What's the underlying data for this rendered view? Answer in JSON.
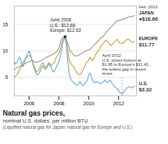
{
  "chart_data": {
    "type": "line",
    "title": "Natural gas prices,",
    "subtitle": "nominal U.S. dollars, per million BTU",
    "caption": "(Liquified natural gas for Japan, natural gas for Europe and U.S.)",
    "xlim": [
      2005.0,
      2013.2
    ],
    "ylim": [
      1.5,
      18.5
    ],
    "xticks": [
      2006,
      2008,
      2010,
      2012
    ],
    "yticks": [
      5,
      10,
      15
    ],
    "grid": true,
    "series": [
      {
        "name": "EUROPE",
        "color": "#c8a44a",
        "x": [
          2005.0,
          2005.08,
          2005.17,
          2005.25,
          2005.33,
          2005.42,
          2005.5,
          2005.58,
          2005.67,
          2005.75,
          2005.83,
          2005.92,
          2006.0,
          2006.08,
          2006.17,
          2006.25,
          2006.33,
          2006.42,
          2006.5,
          2006.58,
          2006.67,
          2006.75,
          2006.83,
          2006.92,
          2007.0,
          2007.08,
          2007.17,
          2007.25,
          2007.33,
          2007.42,
          2007.5,
          2007.58,
          2007.67,
          2007.75,
          2007.83,
          2007.92,
          2008.0,
          2008.08,
          2008.17,
          2008.25,
          2008.33,
          2008.42,
          2008.5,
          2008.58,
          2008.67,
          2008.75,
          2008.83,
          2008.92,
          2009.0,
          2009.08,
          2009.17,
          2009.25,
          2009.33,
          2009.42,
          2009.5,
          2009.58,
          2009.67,
          2009.75,
          2009.83,
          2009.92,
          2010.0,
          2010.08,
          2010.17,
          2010.25,
          2010.33,
          2010.42,
          2010.5,
          2010.58,
          2010.67,
          2010.75,
          2010.83,
          2010.92,
          2011.0,
          2011.08,
          2011.17,
          2011.25,
          2011.33,
          2011.42,
          2011.5,
          2011.58,
          2011.67,
          2011.75,
          2011.83,
          2011.92,
          2012.0,
          2012.08,
          2012.17,
          2012.25,
          2012.33,
          2012.42,
          2012.5,
          2012.58,
          2012.67,
          2012.75,
          2012.83,
          2012.92,
          2013.0,
          2013.08
        ],
        "values": [
          5.0,
          5.2,
          5.5,
          5.8,
          6.2,
          6.8,
          7.2,
          7.8,
          8.2,
          8.5,
          8.8,
          9.0,
          9.2,
          9.0,
          8.5,
          7.8,
          7.2,
          6.5,
          6.0,
          6.2,
          6.5,
          7.0,
          7.5,
          7.8,
          7.2,
          6.8,
          7.0,
          7.5,
          7.8,
          7.5,
          7.2,
          7.5,
          7.8,
          8.2,
          8.8,
          9.2,
          9.5,
          10.2,
          11.0,
          12.0,
          12.4,
          12.63,
          12.0,
          10.5,
          8.5,
          7.8,
          7.5,
          7.2,
          7.0,
          6.5,
          6.0,
          5.8,
          5.5,
          5.5,
          5.8,
          6.2,
          6.8,
          7.2,
          7.8,
          8.0,
          8.2,
          8.8,
          8.5,
          8.2,
          8.5,
          9.0,
          9.5,
          9.8,
          10.0,
          10.5,
          11.0,
          11.2,
          11.5,
          11.8,
          12.0,
          11.8,
          11.5,
          11.2,
          11.0,
          11.2,
          11.5,
          11.8,
          12.0,
          12.2,
          11.8,
          11.5,
          11.42,
          11.42,
          11.5,
          11.8,
          12.0,
          12.2,
          12.2,
          12.0,
          11.8,
          11.6,
          11.7,
          11.77
        ]
      },
      {
        "name": "U.S.",
        "color": "#6aaecc",
        "x": [
          2005.0,
          2005.08,
          2005.17,
          2005.25,
          2005.33,
          2005.42,
          2005.5,
          2005.58,
          2005.67,
          2005.75,
          2005.83,
          2005.92,
          2006.0,
          2006.08,
          2006.17,
          2006.25,
          2006.33,
          2006.42,
          2006.5,
          2006.58,
          2006.67,
          2006.75,
          2006.83,
          2006.92,
          2007.0,
          2007.08,
          2007.17,
          2007.25,
          2007.33,
          2007.42,
          2007.5,
          2007.58,
          2007.67,
          2007.75,
          2007.83,
          2007.92,
          2008.0,
          2008.08,
          2008.17,
          2008.25,
          2008.33,
          2008.42,
          2008.5,
          2008.58,
          2008.67,
          2008.75,
          2008.83,
          2008.92,
          2009.0,
          2009.08,
          2009.17,
          2009.25,
          2009.33,
          2009.42,
          2009.5,
          2009.58,
          2009.67,
          2009.75,
          2009.83,
          2009.92,
          2010.0,
          2010.08,
          2010.17,
          2010.25,
          2010.33,
          2010.42,
          2010.5,
          2010.58,
          2010.67,
          2010.75,
          2010.83,
          2010.92,
          2011.0,
          2011.08,
          2011.17,
          2011.25,
          2011.33,
          2011.42,
          2011.5,
          2011.58,
          2011.67,
          2011.75,
          2011.83,
          2011.92,
          2012.0,
          2012.08,
          2012.17,
          2012.25,
          2012.33,
          2012.42,
          2012.5,
          2012.58,
          2012.67,
          2012.75,
          2012.83,
          2012.92,
          2013.0,
          2013.08
        ],
        "values": [
          8.0,
          7.5,
          7.8,
          8.2,
          8.8,
          8.5,
          7.5,
          7.0,
          7.8,
          8.5,
          9.2,
          9.5,
          10.0,
          9.5,
          8.5,
          7.5,
          6.8,
          6.0,
          5.5,
          5.5,
          5.8,
          6.2,
          6.8,
          7.2,
          6.8,
          6.5,
          6.8,
          7.2,
          7.5,
          7.2,
          6.8,
          6.2,
          6.0,
          6.5,
          7.0,
          7.5,
          8.0,
          8.8,
          10.0,
          11.5,
          12.0,
          12.68,
          11.0,
          8.5,
          6.0,
          5.0,
          4.5,
          4.2,
          4.0,
          3.8,
          3.5,
          3.5,
          3.8,
          4.2,
          3.8,
          3.5,
          3.5,
          3.8,
          4.2,
          4.5,
          5.5,
          5.8,
          5.2,
          4.5,
          4.2,
          4.0,
          4.0,
          4.2,
          4.0,
          3.8,
          3.8,
          4.0,
          4.2,
          4.5,
          4.2,
          4.0,
          4.2,
          4.5,
          4.2,
          3.8,
          3.5,
          3.2,
          3.0,
          2.8,
          2.5,
          2.2,
          2.0,
          1.95,
          2.2,
          2.5,
          2.8,
          3.0,
          3.2,
          3.2,
          3.1,
          3.0,
          3.2,
          3.32
        ]
      },
      {
        "name": "JAPAN",
        "color": "#999999",
        "x": [
          2005.0,
          2005.17,
          2005.33,
          2005.5,
          2005.67,
          2005.83,
          2006.0,
          2006.17,
          2006.33,
          2006.5,
          2006.67,
          2006.83,
          2007.0,
          2007.17,
          2007.33,
          2007.5,
          2007.67,
          2007.83,
          2008.0,
          2008.17,
          2008.33,
          2008.42,
          2008.58,
          2008.75,
          2008.92,
          2009.0,
          2009.17,
          2009.33,
          2009.5,
          2009.67,
          2009.83,
          2010.0,
          2010.17,
          2010.33,
          2010.5,
          2010.67,
          2010.83,
          2011.0,
          2011.17,
          2011.33,
          2011.5,
          2011.67,
          2011.83,
          2012.0,
          2012.17,
          2012.33,
          2012.5,
          2012.67,
          2012.83,
          2013.0,
          2013.08
        ],
        "values": [
          6.5,
          6.8,
          7.0,
          7.2,
          7.5,
          7.8,
          8.0,
          8.2,
          8.0,
          7.8,
          8.0,
          8.2,
          8.5,
          8.8,
          9.0,
          9.2,
          9.5,
          9.8,
          10.5,
          12.2,
          12.68,
          12.68,
          11.5,
          10.0,
          9.5,
          9.2,
          9.0,
          9.2,
          9.5,
          9.8,
          10.0,
          10.2,
          10.5,
          11.0,
          11.5,
          12.0,
          12.5,
          12.8,
          13.5,
          14.0,
          14.5,
          15.0,
          15.5,
          15.8,
          15.8,
          16.0,
          16.2,
          16.4,
          16.5,
          16.6,
          16.66
        ]
      }
    ],
    "annotations": [
      {
        "text": "June 2008\nU.S.: $12.68\nEurope: $12.63",
        "x": 2008.42,
        "y": 12.68
      },
      {
        "text": "April 2012\nU.S. prices bottom at\n$1.95 to Europe’s $11.42,\nthe widest gap in recent\ntimes.",
        "x": 2012.25
      },
      {
        "text": "Feb. 2013",
        "x": 2013.08,
        "y": 16.66
      },
      {
        "text": "●$16.66",
        "x": 2013.08,
        "y": 16.66
      },
      {
        "text": "$11.77",
        "x": 2013.08,
        "y": 11.77
      },
      {
        "text": "$3.32",
        "x": 2013.08,
        "y": 3.32
      }
    ]
  }
}
